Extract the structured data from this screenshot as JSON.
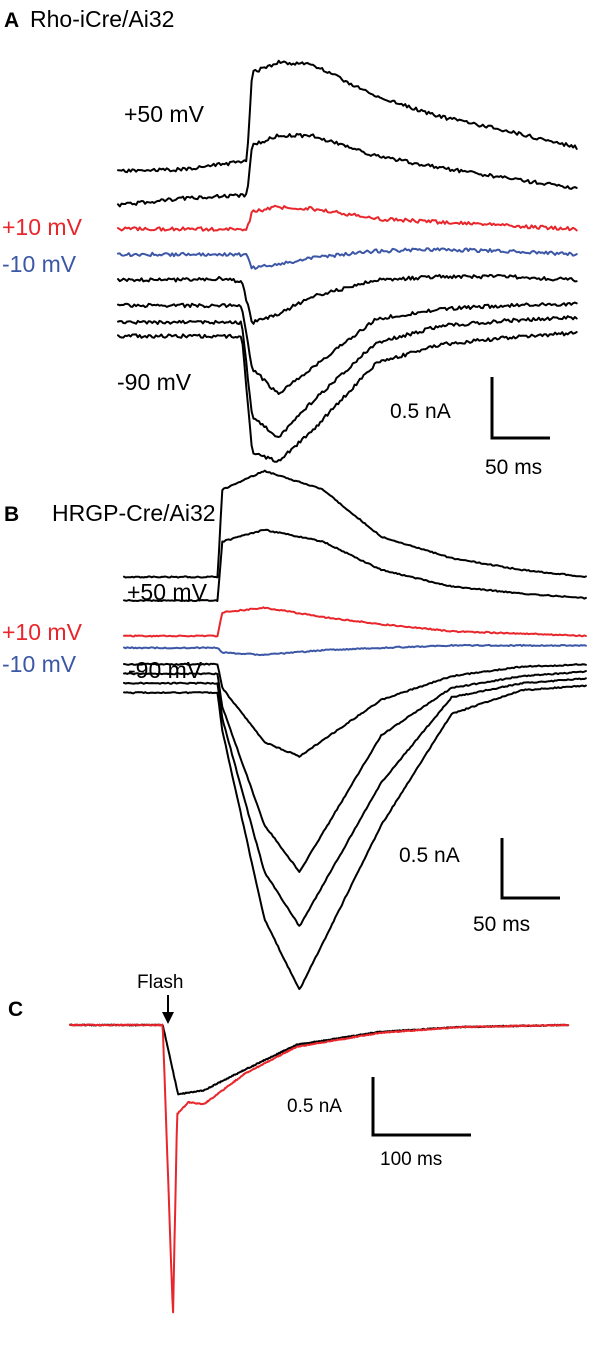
{
  "colors": {
    "black": "#000000",
    "red": "#e8262b",
    "blue": "#3d57a7"
  },
  "panels": {
    "A": {
      "letter": "A",
      "title": "Rho-iCre/Ai32",
      "labels": {
        "top": "+50 mV",
        "red": "+10 mV",
        "blue": "-10 mV",
        "bottom": "-90 mV"
      },
      "scale": {
        "current": "0.5 nA",
        "time": "50 ms"
      }
    },
    "B": {
      "letter": "B",
      "title": "HRGP-Cre/Ai32",
      "labels": {
        "top": "+50 mV",
        "red": "+10 mV",
        "blue": "-10 mV",
        "bottom": "-90 mV"
      },
      "scale": {
        "current": "0.5 nA",
        "time": "50 ms"
      }
    },
    "C": {
      "letter": "C",
      "flash_label": "Flash",
      "scale": {
        "current": "0.5 nA",
        "time": "100 ms"
      }
    }
  },
  "chart_data": [
    {
      "type": "line",
      "panel": "A",
      "title": "Rho-iCre/Ai32",
      "xlabel": "",
      "ylabel": "",
      "scale_bars": {
        "current_nA": 0.5,
        "time_ms": 50
      },
      "series": [
        {
          "label": "+50 mV",
          "color": "black",
          "points": [
            [
              0,
              0.34
            ],
            [
              25,
              0.35
            ],
            [
              50,
              0.4
            ],
            [
              52,
              0.92
            ],
            [
              62,
              0.98
            ],
            [
              75,
              0.97
            ],
            [
              100,
              0.78
            ],
            [
              125,
              0.66
            ],
            [
              150,
              0.58
            ],
            [
              178,
              0.48
            ]
          ]
        },
        {
          "values": [
            [
              0,
              0.14
            ],
            [
              25,
              0.18
            ],
            [
              50,
              0.2
            ],
            [
              52,
              0.49
            ],
            [
              62,
              0.55
            ],
            [
              75,
              0.55
            ],
            [
              100,
              0.43
            ],
            [
              125,
              0.36
            ],
            [
              150,
              0.3
            ],
            [
              178,
              0.24
            ]
          ]
        },
        {
          "label": "+10 mV",
          "color": "red",
          "values": [
            [
              0,
              0.0
            ],
            [
              25,
              0.0
            ],
            [
              50,
              0.0
            ],
            [
              52,
              0.1
            ],
            [
              62,
              0.13
            ],
            [
              75,
              0.12
            ],
            [
              100,
              0.06
            ],
            [
              125,
              0.04
            ],
            [
              150,
              0.02
            ],
            [
              178,
              0.0
            ]
          ]
        },
        {
          "label": "-10 mV",
          "color": "blue",
          "values": [
            [
              0,
              -0.15
            ],
            [
              25,
              -0.15
            ],
            [
              50,
              -0.15
            ],
            [
              52,
              -0.23
            ],
            [
              62,
              -0.21
            ],
            [
              75,
              -0.17
            ],
            [
              100,
              -0.13
            ],
            [
              125,
              -0.12
            ],
            [
              150,
              -0.13
            ],
            [
              178,
              -0.15
            ]
          ]
        },
        {
          "values": [
            [
              0,
              -0.3
            ],
            [
              25,
              -0.3
            ],
            [
              40,
              -0.29
            ],
            [
              48,
              -0.31
            ],
            [
              52,
              -0.55
            ],
            [
              62,
              -0.5
            ],
            [
              75,
              -0.4
            ],
            [
              100,
              -0.3
            ],
            [
              125,
              -0.28
            ],
            [
              150,
              -0.28
            ],
            [
              178,
              -0.3
            ]
          ]
        },
        {
          "values": [
            [
              0,
              -0.45
            ],
            [
              25,
              -0.45
            ],
            [
              48,
              -0.45
            ],
            [
              52,
              -0.82
            ],
            [
              62,
              -0.97
            ],
            [
              75,
              -0.82
            ],
            [
              100,
              -0.53
            ],
            [
              125,
              -0.47
            ],
            [
              150,
              -0.45
            ],
            [
              178,
              -0.44
            ]
          ]
        },
        {
          "values": [
            [
              0,
              -0.55
            ],
            [
              25,
              -0.55
            ],
            [
              48,
              -0.55
            ],
            [
              52,
              -1.1
            ],
            [
              62,
              -1.23
            ],
            [
              75,
              -1.02
            ],
            [
              100,
              -0.67
            ],
            [
              125,
              -0.57
            ],
            [
              150,
              -0.54
            ],
            [
              178,
              -0.52
            ]
          ]
        },
        {
          "label": "-90 mV",
          "color": "black",
          "values": [
            [
              0,
              -0.63
            ],
            [
              25,
              -0.63
            ],
            [
              48,
              -0.63
            ],
            [
              52,
              -1.31
            ],
            [
              62,
              -1.37
            ],
            [
              75,
              -1.19
            ],
            [
              100,
              -0.79
            ],
            [
              125,
              -0.68
            ],
            [
              150,
              -0.64
            ],
            [
              178,
              -0.61
            ]
          ]
        }
      ]
    },
    {
      "type": "line",
      "panel": "B",
      "title": "HRGP-Cre/Ai32",
      "xlabel": "",
      "ylabel": "",
      "scale_bars": {
        "current_nA": 0.5,
        "time_ms": 50
      },
      "series": [
        {
          "label": "+50 mV",
          "color": "black",
          "values": [
            [
              0,
              0.25
            ],
            [
              40,
              0.25
            ],
            [
              42,
              0.62
            ],
            [
              60,
              0.7
            ],
            [
              85,
              0.62
            ],
            [
              110,
              0.42
            ],
            [
              140,
              0.33
            ],
            [
              170,
              0.28
            ],
            [
              198,
              0.25
            ]
          ]
        },
        {
          "values": [
            [
              0,
              0.15
            ],
            [
              40,
              0.15
            ],
            [
              42,
              0.4
            ],
            [
              60,
              0.45
            ],
            [
              85,
              0.4
            ],
            [
              110,
              0.28
            ],
            [
              140,
              0.21
            ],
            [
              170,
              0.18
            ],
            [
              198,
              0.16
            ]
          ]
        },
        {
          "label": "+10 mV",
          "color": "red",
          "values": [
            [
              0,
              0.0
            ],
            [
              40,
              0.0
            ],
            [
              42,
              0.1
            ],
            [
              60,
              0.12
            ],
            [
              85,
              0.08
            ],
            [
              110,
              0.05
            ],
            [
              140,
              0.02
            ],
            [
              170,
              0.01
            ],
            [
              198,
              0.0
            ]
          ]
        },
        {
          "label": "-10 mV",
          "color": "blue",
          "values": [
            [
              0,
              -0.05
            ],
            [
              40,
              -0.05
            ],
            [
              42,
              -0.07
            ],
            [
              60,
              -0.08
            ],
            [
              85,
              -0.06
            ],
            [
              110,
              -0.05
            ],
            [
              140,
              -0.04
            ],
            [
              198,
              -0.04
            ]
          ]
        },
        {
          "values": [
            [
              0,
              -0.12
            ],
            [
              40,
              -0.12
            ],
            [
              42,
              -0.22
            ],
            [
              60,
              -0.45
            ],
            [
              75,
              -0.51
            ],
            [
              110,
              -0.27
            ],
            [
              140,
              -0.17
            ],
            [
              170,
              -0.13
            ],
            [
              198,
              -0.12
            ]
          ]
        },
        {
          "values": [
            [
              0,
              -0.16
            ],
            [
              40,
              -0.16
            ],
            [
              42,
              -0.3
            ],
            [
              60,
              -0.8
            ],
            [
              75,
              -1.0
            ],
            [
              110,
              -0.42
            ],
            [
              140,
              -0.22
            ],
            [
              170,
              -0.17
            ],
            [
              198,
              -0.15
            ]
          ]
        },
        {
          "values": [
            [
              0,
              -0.2
            ],
            [
              40,
              -0.2
            ],
            [
              42,
              -0.35
            ],
            [
              60,
              -1.0
            ],
            [
              75,
              -1.23
            ],
            [
              110,
              -0.62
            ],
            [
              140,
              -0.26
            ],
            [
              170,
              -0.2
            ],
            [
              198,
              -0.18
            ]
          ]
        },
        {
          "label": "-90 mV",
          "color": "black",
          "values": [
            [
              0,
              -0.24
            ],
            [
              40,
              -0.24
            ],
            [
              42,
              -0.4
            ],
            [
              60,
              -1.2
            ],
            [
              75,
              -1.5
            ],
            [
              110,
              -0.8
            ],
            [
              140,
              -0.33
            ],
            [
              170,
              -0.23
            ],
            [
              198,
              -0.21
            ]
          ]
        }
      ]
    },
    {
      "type": "line",
      "panel": "C",
      "xlabel": "",
      "ylabel": "",
      "annotations": [
        "Flash"
      ],
      "flash_time_ms": 95,
      "scale_bars": {
        "current_nA": 0.5,
        "time_ms": 100
      },
      "series": [
        {
          "color": "black",
          "values": [
            [
              0,
              0.0
            ],
            [
              90,
              0.0
            ],
            [
              105,
              -0.7
            ],
            [
              130,
              -0.66
            ],
            [
              170,
              -0.45
            ],
            [
              220,
              -0.2
            ],
            [
              300,
              -0.07
            ],
            [
              380,
              -0.02
            ],
            [
              484,
              0.0
            ]
          ]
        },
        {
          "color": "red",
          "values": [
            [
              0,
              0.0
            ],
            [
              90,
              0.0
            ],
            [
              100,
              -2.95
            ],
            [
              104,
              -0.9
            ],
            [
              115,
              -0.78
            ],
            [
              130,
              -0.8
            ],
            [
              170,
              -0.49
            ],
            [
              220,
              -0.22
            ],
            [
              300,
              -0.08
            ],
            [
              380,
              -0.02
            ],
            [
              484,
              0.0
            ]
          ]
        }
      ]
    }
  ]
}
